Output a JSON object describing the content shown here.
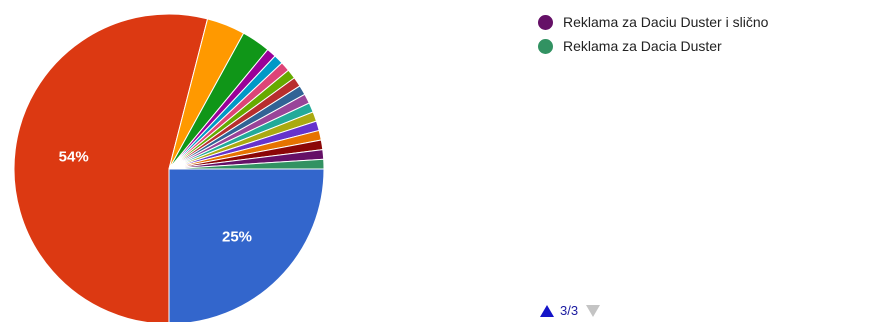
{
  "chart_data": {
    "type": "pie",
    "slices": [
      {
        "value": 25,
        "label": "25%",
        "color": "#3366cc"
      },
      {
        "value": 54,
        "label": "54%",
        "color": "#dc3912"
      },
      {
        "value": 4.0,
        "label": "",
        "color": "#ff9900"
      },
      {
        "value": 3.0,
        "label": "",
        "color": "#109618"
      },
      {
        "value": 1.0,
        "label": "",
        "color": "#990099"
      },
      {
        "value": 1.0,
        "label": "",
        "color": "#0099c6"
      },
      {
        "value": 1.0,
        "label": "",
        "color": "#dd4477"
      },
      {
        "value": 1.0,
        "label": "",
        "color": "#66aa00"
      },
      {
        "value": 1.0,
        "label": "",
        "color": "#b82e2e"
      },
      {
        "value": 1.0,
        "label": "",
        "color": "#316395"
      },
      {
        "value": 1.0,
        "label": "",
        "color": "#994499"
      },
      {
        "value": 1.0,
        "label": "",
        "color": "#22aa99"
      },
      {
        "value": 1.0,
        "label": "",
        "color": "#aaaa11"
      },
      {
        "value": 1.0,
        "label": "",
        "color": "#6633cc"
      },
      {
        "value": 1.0,
        "label": "",
        "color": "#e67300"
      },
      {
        "value": 1.0,
        "label": "",
        "color": "#8b0707"
      },
      {
        "value": 1.0,
        "label": "",
        "color": "#651067"
      },
      {
        "value": 1.0,
        "label": "",
        "color": "#329262"
      }
    ],
    "legend": {
      "placement": "right",
      "entries": [
        {
          "name": "Reklama za Daciu Duster i slično",
          "color": "#651067"
        },
        {
          "name": "Reklama za Dacia Duster",
          "color": "#329262"
        }
      ]
    }
  },
  "pager": {
    "text": "3/3",
    "up_color": "#1414c8",
    "down_color": "#c4c4c4"
  }
}
